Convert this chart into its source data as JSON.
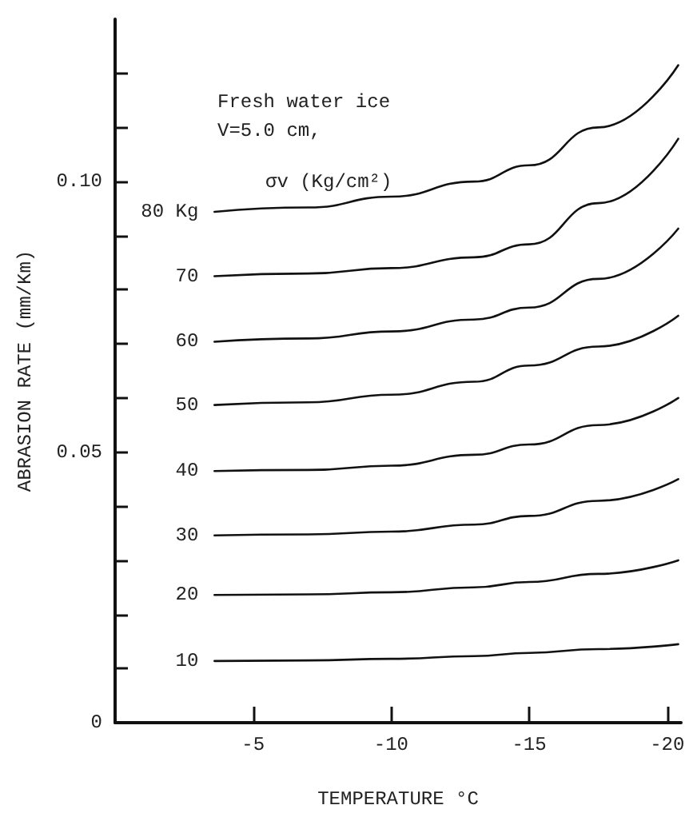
{
  "chart_data": {
    "type": "line",
    "xlabel": "TEMPERATURE °C",
    "ylabel": "ABRASION RATE (mm/Km)",
    "annotations": [
      "Fresh water ice",
      "V=5.0 cm,",
      "σv (Kg/cm²)"
    ],
    "x": [
      -3.6,
      -7,
      -10,
      -13,
      -15,
      -17.5,
      -20.4
    ],
    "series": [
      {
        "name": "80 Kg",
        "color": "#111111",
        "values": [
          0.0944,
          0.0952,
          0.0972,
          0.1,
          0.103,
          0.11,
          0.1215
        ]
      },
      {
        "name": "70",
        "color": "#111111",
        "values": [
          0.0825,
          0.083,
          0.084,
          0.086,
          0.0884,
          0.096,
          0.1079
        ]
      },
      {
        "name": "60",
        "color": "#111111",
        "values": [
          0.0704,
          0.071,
          0.0723,
          0.0745,
          0.0767,
          0.082,
          0.0913
        ]
      },
      {
        "name": "50",
        "color": "#111111",
        "values": [
          0.0587,
          0.0592,
          0.0606,
          0.063,
          0.066,
          0.0695,
          0.0752
        ]
      },
      {
        "name": "40",
        "color": "#111111",
        "values": [
          0.0465,
          0.0467,
          0.0475,
          0.0495,
          0.0514,
          0.055,
          0.06
        ]
      },
      {
        "name": "30",
        "color": "#111111",
        "values": [
          0.0346,
          0.0348,
          0.0353,
          0.0366,
          0.0382,
          0.041,
          0.045
        ]
      },
      {
        "name": "20",
        "color": "#111111",
        "values": [
          0.0236,
          0.0237,
          0.0241,
          0.025,
          0.026,
          0.0275,
          0.03
        ]
      },
      {
        "name": "10",
        "color": "#111111",
        "values": [
          0.0114,
          0.0115,
          0.0118,
          0.0123,
          0.0129,
          0.0136,
          0.0145
        ]
      }
    ],
    "xlim": [
      0,
      -20.5
    ],
    "xticks": [
      -5,
      -10,
      -15,
      -20
    ],
    "ylim": [
      0,
      0.13
    ],
    "yticks": [
      0,
      {
        "value": 0.01,
        "label": null
      },
      {
        "value": 0.02,
        "label": null
      },
      {
        "value": 0.03,
        "label": null
      },
      {
        "value": 0.04,
        "label": null
      },
      0.05,
      {
        "value": 0.06,
        "label": null
      },
      {
        "value": 0.07,
        "label": null
      },
      {
        "value": 0.08,
        "label": null
      },
      {
        "value": 0.09,
        "label": null
      },
      {
        "value": 0.1,
        "label": "0.10"
      },
      {
        "value": 0.11,
        "label": null
      },
      {
        "value": 0.12,
        "label": null
      }
    ],
    "grid": false,
    "legend": false,
    "marker": "none",
    "line_style": "solid"
  }
}
